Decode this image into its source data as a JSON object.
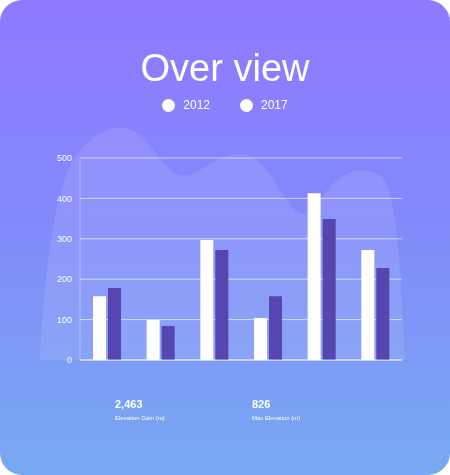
{
  "chart_data": {
    "type": "bar",
    "title": "Over view",
    "categories": [
      null,
      null,
      null,
      null,
      null,
      null
    ],
    "series": [
      {
        "name": "2012",
        "color": "#ffffff",
        "values": [
          158,
          99,
          297,
          104,
          413,
          272
        ]
      },
      {
        "name": "2017",
        "color": "#5546b0",
        "values": [
          178,
          84,
          272,
          158,
          349,
          228
        ]
      }
    ],
    "ylim": [
      0,
      500
    ],
    "yticks": [
      0,
      100,
      200,
      300,
      400,
      500
    ],
    "grid": true,
    "legend": "top",
    "tick_labels": "y"
  },
  "stats": [
    {
      "value": "2,463",
      "label": "Elevation Gain (m)"
    },
    {
      "value": "826",
      "label": "Max Elevation (m)"
    }
  ]
}
